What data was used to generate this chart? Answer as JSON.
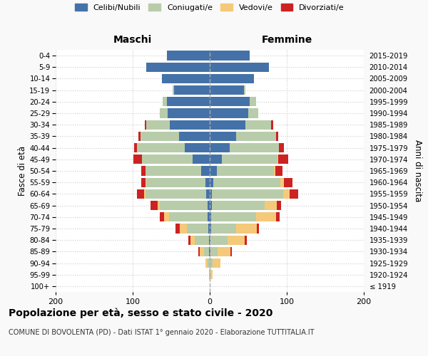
{
  "age_groups": [
    "100+",
    "95-99",
    "90-94",
    "85-89",
    "80-84",
    "75-79",
    "70-74",
    "65-69",
    "60-64",
    "55-59",
    "50-54",
    "45-49",
    "40-44",
    "35-39",
    "30-34",
    "25-29",
    "20-24",
    "15-19",
    "10-14",
    "5-9",
    "0-4"
  ],
  "birth_years": [
    "≤ 1919",
    "1920-1924",
    "1925-1929",
    "1930-1934",
    "1935-1939",
    "1940-1944",
    "1945-1949",
    "1950-1954",
    "1955-1959",
    "1960-1964",
    "1965-1969",
    "1970-1974",
    "1975-1979",
    "1980-1984",
    "1985-1989",
    "1990-1994",
    "1995-1999",
    "2000-2004",
    "2005-2009",
    "2010-2014",
    "2015-2019"
  ],
  "colors": {
    "celibi": "#4472a8",
    "coniugati": "#b8ccaa",
    "vedovi": "#f5c97a",
    "divorziati": "#cc2222"
  },
  "males": {
    "celibi": [
      0,
      0,
      0,
      1,
      1,
      2,
      3,
      3,
      5,
      6,
      11,
      22,
      32,
      40,
      52,
      55,
      56,
      46,
      62,
      82,
      56
    ],
    "coniugati": [
      0,
      1,
      3,
      6,
      18,
      28,
      50,
      62,
      78,
      76,
      72,
      66,
      62,
      50,
      30,
      10,
      5,
      2,
      0,
      0,
      0
    ],
    "vedovi": [
      0,
      0,
      3,
      6,
      6,
      9,
      6,
      3,
      2,
      1,
      0,
      0,
      0,
      0,
      0,
      0,
      0,
      0,
      0,
      0,
      0
    ],
    "divorziati": [
      0,
      0,
      0,
      2,
      3,
      5,
      6,
      9,
      9,
      6,
      6,
      11,
      4,
      3,
      2,
      0,
      0,
      0,
      0,
      0,
      0
    ]
  },
  "females": {
    "celibi": [
      0,
      0,
      0,
      1,
      1,
      2,
      2,
      3,
      3,
      5,
      9,
      16,
      26,
      34,
      46,
      50,
      52,
      44,
      57,
      77,
      52
    ],
    "coniugati": [
      0,
      1,
      4,
      9,
      22,
      32,
      58,
      68,
      92,
      87,
      74,
      72,
      64,
      52,
      34,
      13,
      8,
      2,
      0,
      0,
      0
    ],
    "vedovi": [
      0,
      3,
      10,
      17,
      22,
      27,
      26,
      16,
      9,
      4,
      2,
      1,
      0,
      0,
      0,
      0,
      0,
      0,
      0,
      0,
      0
    ],
    "divorziati": [
      0,
      0,
      0,
      2,
      3,
      3,
      5,
      6,
      11,
      11,
      9,
      13,
      6,
      3,
      2,
      0,
      0,
      0,
      0,
      0,
      0
    ]
  },
  "title": "Popolazione per età, sesso e stato civile - 2020",
  "subtitle": "COMUNE DI BOVOLENTA (PD) - Dati ISTAT 1° gennaio 2020 - Elaborazione TUTTITALIA.IT",
  "xlabel_left": "Maschi",
  "xlabel_right": "Femmine",
  "ylabel_left": "Fasce di età",
  "ylabel_right": "Anni di nascita",
  "xlim": 200,
  "legend_labels": [
    "Celibi/Nubili",
    "Coniugati/e",
    "Vedovi/e",
    "Divorziati/e"
  ],
  "background_color": "#f9f9f9",
  "plot_bg": "#ffffff"
}
